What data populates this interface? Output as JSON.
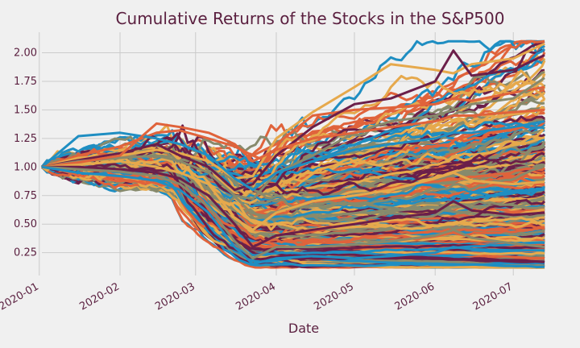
{
  "chart_data": {
    "type": "line",
    "title": "Cumulative Returns of the Stocks in the S&P500",
    "xlabel": "Date",
    "ylabel": "",
    "x_range": [
      "2020-01-02",
      "2020-07-13"
    ],
    "x_ticks": [
      "2020-01",
      "2020-02",
      "2020-03",
      "2020-04",
      "2020-05",
      "2020-06",
      "2020-07"
    ],
    "ylim": [
      0.05,
      2.18
    ],
    "y_ticks": [
      0.25,
      0.5,
      0.75,
      1.0,
      1.25,
      1.5,
      1.75,
      2.0
    ],
    "y_tick_labels": [
      "0.25",
      "0.50",
      "0.75",
      "1.00",
      "1.25",
      "1.50",
      "1.75",
      "2.00"
    ],
    "grid": true,
    "legend": "none",
    "color_cycle": [
      "#1f8ec2",
      "#e0633b",
      "#e6a94c",
      "#6b1f4a",
      "#878a6c"
    ],
    "series_count": 500,
    "x_dates": [
      "2020-01-02",
      "2020-01-16",
      "2020-02-01",
      "2020-02-15",
      "2020-02-24",
      "2020-03-06",
      "2020-03-16",
      "2020-03-23",
      "2020-04-01",
      "2020-04-15",
      "2020-05-01",
      "2020-05-15",
      "2020-06-01",
      "2020-06-08",
      "2020-06-15",
      "2020-07-01",
      "2020-07-13"
    ],
    "representative_series": [
      {
        "values": [
          1.0,
          1.1,
          1.18,
          1.3,
          1.32,
          1.25,
          1.18,
          1.1,
          1.2,
          1.45,
          1.5,
          1.52,
          1.55,
          1.6,
          1.58,
          1.65,
          1.7
        ]
      },
      {
        "values": [
          1.0,
          1.08,
          1.1,
          1.15,
          1.12,
          1.05,
          0.9,
          0.92,
          1.25,
          1.48,
          1.7,
          1.9,
          1.85,
          1.82,
          1.9,
          1.95,
          2.08
        ]
      },
      {
        "values": [
          1.0,
          1.06,
          1.12,
          1.2,
          1.1,
          1.0,
          0.8,
          0.85,
          1.1,
          1.35,
          1.55,
          1.6,
          1.75,
          2.02,
          1.8,
          1.85,
          1.98
        ]
      },
      {
        "values": [
          1.0,
          1.05,
          1.08,
          1.1,
          1.05,
          0.95,
          0.75,
          0.72,
          0.95,
          1.1,
          1.3,
          1.4,
          1.45,
          1.5,
          1.55,
          1.6,
          1.78
        ]
      },
      {
        "values": [
          1.0,
          1.27,
          1.3,
          1.25,
          1.2,
          1.1,
          0.9,
          0.8,
          0.95,
          1.05,
          1.15,
          1.2,
          1.25,
          1.3,
          1.3,
          1.35,
          1.4
        ]
      },
      {
        "values": [
          1.0,
          1.04,
          1.1,
          1.38,
          1.35,
          1.3,
          1.2,
          1.05,
          1.15,
          1.25,
          1.3,
          1.35,
          1.4,
          1.45,
          1.45,
          1.48,
          1.5
        ]
      },
      {
        "values": [
          1.0,
          1.02,
          1.05,
          1.0,
          0.95,
          0.85,
          0.55,
          0.45,
          0.6,
          0.7,
          0.75,
          0.8,
          0.9,
          0.95,
          0.88,
          0.85,
          0.87
        ]
      },
      {
        "values": [
          1.0,
          1.0,
          0.98,
          0.95,
          0.9,
          0.75,
          0.5,
          0.3,
          0.4,
          0.45,
          0.5,
          0.55,
          0.6,
          0.7,
          0.62,
          0.58,
          0.6
        ]
      },
      {
        "values": [
          1.0,
          0.98,
          0.96,
          0.92,
          0.85,
          0.65,
          0.35,
          0.2,
          0.3,
          0.3,
          0.32,
          0.35,
          0.4,
          0.45,
          0.38,
          0.33,
          0.3
        ]
      },
      {
        "values": [
          1.0,
          0.95,
          0.92,
          0.88,
          0.8,
          0.6,
          0.3,
          0.15,
          0.2,
          0.22,
          0.2,
          0.22,
          0.25,
          0.3,
          0.28,
          0.27,
          0.27
        ]
      }
    ]
  }
}
